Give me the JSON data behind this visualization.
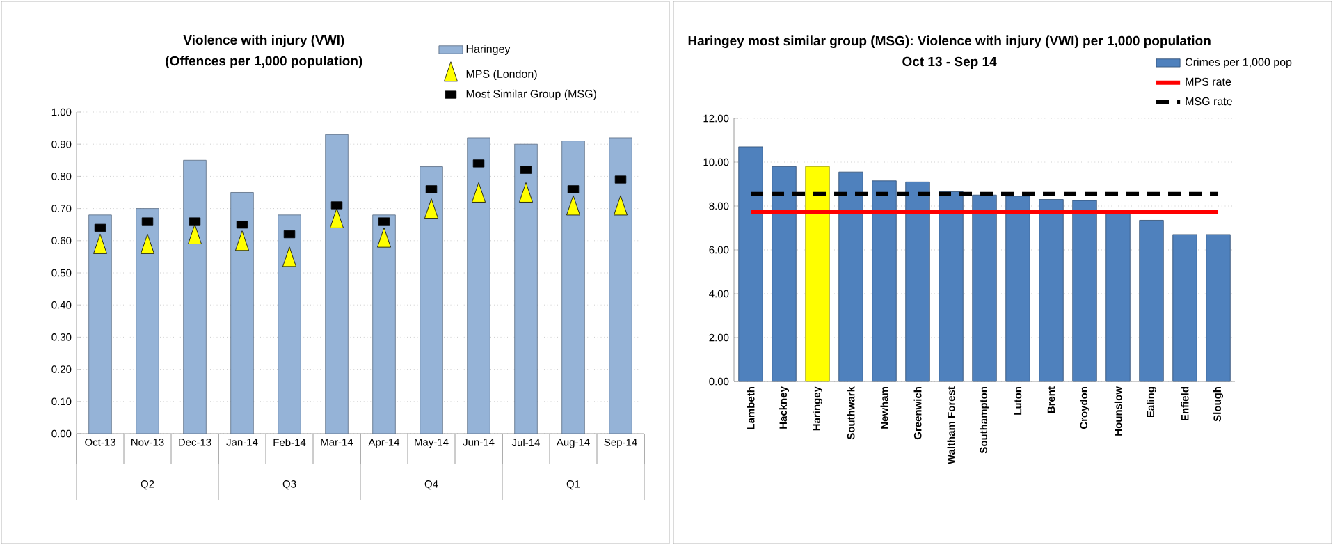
{
  "chart_data": [
    {
      "type": "bar",
      "title": "Violence with injury (VWI)",
      "subtitle": "(Offences per 1,000 population)",
      "categories": [
        "Oct-13",
        "Nov-13",
        "Dec-13",
        "Jan-14",
        "Feb-14",
        "Mar-14",
        "Apr-14",
        "May-14",
        "Jun-14",
        "Jul-14",
        "Aug-14",
        "Sep-14"
      ],
      "series": [
        {
          "name": "Haringey",
          "color": "#95b3d7",
          "values": [
            0.68,
            0.7,
            0.85,
            0.75,
            0.68,
            0.93,
            0.68,
            0.83,
            0.92,
            0.9,
            0.91,
            0.92
          ]
        },
        {
          "name": "MPS (London)",
          "type": "scatter",
          "marker": "triangle",
          "color": "#ffff00",
          "values": [
            0.58,
            0.58,
            0.61,
            0.59,
            0.54,
            0.66,
            0.6,
            0.69,
            0.74,
            0.74,
            0.7,
            0.7
          ]
        },
        {
          "name": "Most Similar Group (MSG)",
          "type": "scatter",
          "color": "#000000",
          "values": [
            0.64,
            0.66,
            0.66,
            0.65,
            0.62,
            0.71,
            0.66,
            0.76,
            0.84,
            0.82,
            0.76,
            0.79
          ]
        }
      ],
      "ylim": [
        0,
        1
      ],
      "yticks": [
        {
          "value": 0,
          "label": "0.00"
        },
        {
          "value": 0.1,
          "label": "0.10"
        },
        {
          "value": 0.2,
          "label": "0.20"
        },
        {
          "value": 0.3,
          "label": "0.30"
        },
        {
          "value": 0.4,
          "label": "0.40"
        },
        {
          "value": 0.5,
          "label": "0.50"
        },
        {
          "value": 0.6,
          "label": "0.60"
        },
        {
          "value": 0.7,
          "label": "0.70"
        },
        {
          "value": 0.8,
          "label": "0.80"
        },
        {
          "value": 0.9,
          "label": "0.90"
        },
        {
          "value": 1,
          "label": "1.00"
        }
      ],
      "annotations": [
        "Q2",
        "Q3",
        "Q4",
        "Q1"
      ],
      "grid": "y",
      "legend": "top right"
    },
    {
      "type": "bar",
      "title": "Haringey most similar group (MSG): Violence with injury (VWI) per 1,000 population",
      "subtitle": "Oct 13 - Sep 14",
      "categories": [
        "Lambeth",
        "Hackney",
        "Haringey",
        "Southwark",
        "Newham",
        "Greenwich",
        "Waltham Forest",
        "Southampton",
        "Luton",
        "Brent",
        "Croydon",
        "Hounslow",
        "Ealing",
        "Enfield",
        "Slough"
      ],
      "series": [
        {
          "name": "Crimes per 1,000 pop",
          "colors": [
            "#4f81bd",
            "#4f81bd",
            "#ffff00",
            "#4f81bd",
            "#4f81bd",
            "#4f81bd",
            "#4f81bd",
            "#4f81bd",
            "#4f81bd",
            "#4f81bd",
            "#4f81bd",
            "#4f81bd",
            "#4f81bd",
            "#4f81bd",
            "#4f81bd"
          ],
          "values": [
            10.7,
            9.8,
            9.8,
            9.55,
            9.15,
            9.1,
            8.65,
            8.5,
            8.45,
            8.3,
            8.25,
            7.75,
            7.35,
            6.7,
            6.7
          ]
        },
        {
          "name": "MPS rate",
          "type": "line",
          "line_style": "solid",
          "color": "#ff0000",
          "values": [
            7.75,
            7.75,
            7.75,
            7.75,
            7.75,
            7.75,
            7.75,
            7.75,
            7.75,
            7.75,
            7.75,
            7.75,
            7.75,
            7.75,
            7.75
          ]
        },
        {
          "name": "MSG rate",
          "type": "line",
          "line_style": "dashed",
          "color": "#000000",
          "values": [
            8.55,
            8.55,
            8.55,
            8.55,
            8.55,
            8.55,
            8.55,
            8.55,
            8.55,
            8.55,
            8.55,
            8.55,
            8.55,
            8.55,
            8.55
          ]
        }
      ],
      "ylim": [
        0,
        12
      ],
      "yticks": [
        {
          "value": 0,
          "label": "0.00"
        },
        {
          "value": 2,
          "label": "2.00"
        },
        {
          "value": 4,
          "label": "4.00"
        },
        {
          "value": 6,
          "label": "6.00"
        },
        {
          "value": 8,
          "label": "8.00"
        },
        {
          "value": 10,
          "label": "10.00"
        },
        {
          "value": 12,
          "label": "12.00"
        }
      ],
      "grid": "y",
      "legend": "top right"
    }
  ]
}
